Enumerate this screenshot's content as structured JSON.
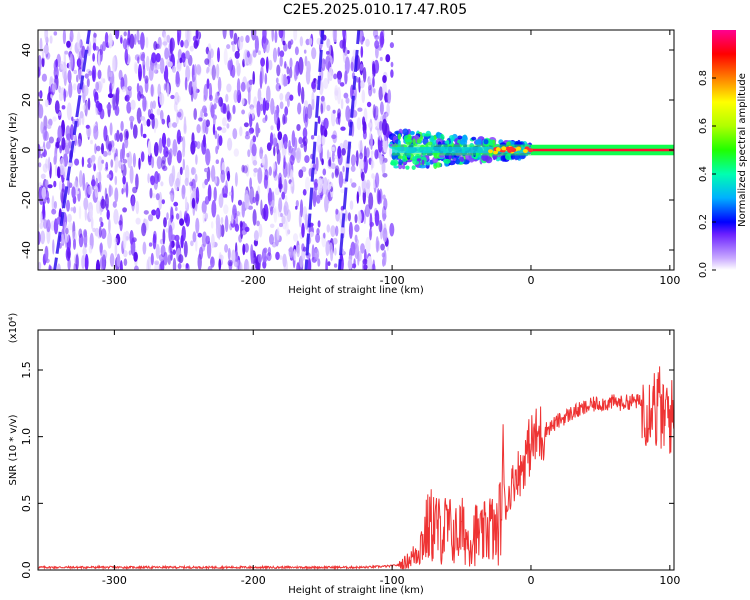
{
  "title": "C2E5.2025.010.17.47.R05",
  "chart_data": [
    {
      "type": "heatmap",
      "xlabel": "Height of straight line (km)",
      "ylabel": "Frequency (Hz)",
      "xlim": [
        -355,
        103
      ],
      "ylim": [
        -48,
        48
      ],
      "x_ticks": [
        -300,
        -200,
        -100,
        0,
        100
      ],
      "y_ticks": [
        -40,
        -20,
        0,
        20,
        40
      ],
      "colorbar": {
        "label": "Normalized spectral amplitude",
        "range": [
          0,
          1
        ],
        "ticks": [
          0.0,
          0.2,
          0.4,
          0.6,
          0.8
        ],
        "tick_labels": [
          "0.0",
          "0.2",
          "0.4",
          "0.6",
          "0.8"
        ],
        "colors": [
          "#ffffff",
          "#c8a8ff",
          "#6a20ff",
          "#0000ff",
          "#00c8ff",
          "#00ff80",
          "#a0ff00",
          "#ffff00",
          "#ff8000",
          "#ff0000",
          "#ff0080"
        ]
      },
      "regions": [
        {
          "x_range": [
            -355,
            -100
          ],
          "frequency_range": [
            -48,
            48
          ],
          "amplitude_range": [
            0.0,
            0.2
          ],
          "description_ref": "noise"
        },
        {
          "x_range": [
            -100,
            0
          ],
          "frequency_range": [
            -10,
            10
          ],
          "amplitude_range": [
            0.2,
            0.9
          ]
        },
        {
          "x_range": [
            0,
            103
          ],
          "frequency_range": [
            -2,
            2
          ],
          "amplitude_range": [
            0.8,
            1.0
          ]
        }
      ],
      "noise_streaks": [
        {
          "x_top": -318,
          "x_bottom": -343
        },
        {
          "x_top": -124,
          "x_bottom": -138
        },
        {
          "x_top": -150,
          "x_bottom": -162
        }
      ]
    },
    {
      "type": "line",
      "xlabel": "Height of straight line (km)",
      "ylabel": "SNR (10 * v/v)",
      "exponent_label": "(x10⁴)",
      "xlim": [
        -355,
        103
      ],
      "ylim": [
        0,
        1.8
      ],
      "x_ticks": [
        -300,
        -200,
        -100,
        0,
        100
      ],
      "y_ticks": [
        0.0,
        0.5,
        1.0,
        1.5
      ],
      "y_tick_labels": [
        "0.0",
        "0.5",
        "1.0",
        "1.5"
      ],
      "series": [
        {
          "color": "#ee3333",
          "x": [
            -355,
            -300,
            -200,
            -120,
            -100,
            -95,
            -90,
            -85,
            -80,
            -75,
            -70,
            -65,
            -60,
            -55,
            -50,
            -45,
            -40,
            -35,
            -30,
            -25,
            -22,
            -20,
            -18,
            -15,
            -12,
            -10,
            -8,
            -5,
            -2,
            0,
            5,
            10,
            15,
            20,
            25,
            30,
            35,
            40,
            45,
            50,
            55,
            60,
            65,
            70,
            75,
            80,
            85,
            88,
            90,
            92,
            95,
            98,
            100,
            103
          ],
          "y": [
            0.02,
            0.02,
            0.02,
            0.02,
            0.03,
            0.04,
            0.06,
            0.1,
            0.18,
            0.3,
            0.35,
            0.28,
            0.32,
            0.25,
            0.3,
            0.22,
            0.28,
            0.24,
            0.35,
            0.25,
            0.4,
            0.75,
            0.45,
            0.6,
            0.68,
            0.75,
            0.72,
            0.82,
            0.9,
            0.95,
            1.0,
            1.05,
            1.08,
            1.12,
            1.15,
            1.18,
            1.2,
            1.22,
            1.24,
            1.25,
            1.25,
            1.26,
            1.25,
            1.26,
            1.27,
            1.25,
            1.2,
            1.35,
            1.15,
            1.3,
            1.1,
            1.2,
            1.15,
            1.15
          ]
        }
      ]
    }
  ]
}
